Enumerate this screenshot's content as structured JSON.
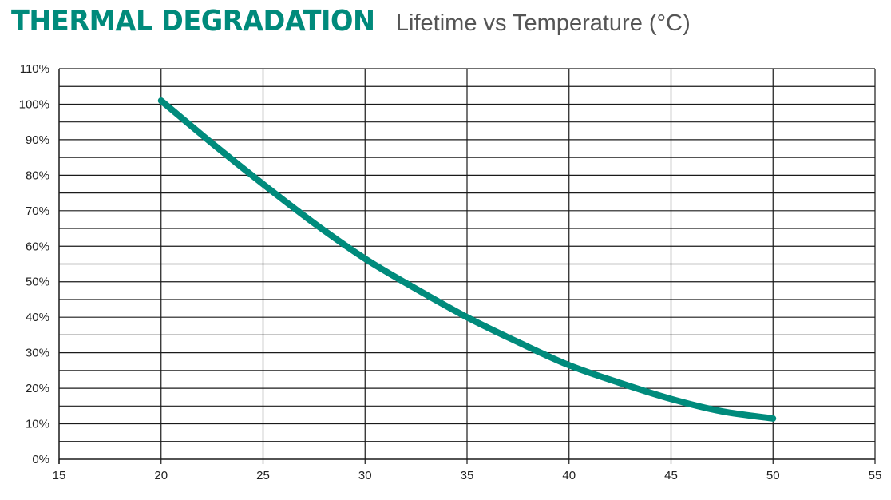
{
  "header": {
    "title": "THERMAL DEGRADATION",
    "subtitle": "Lifetime vs Temperature (°C)"
  },
  "colors": {
    "accent": "#008a7b",
    "curve": "#008b7c",
    "grid": "#1a1a1a"
  },
  "chart_data": {
    "type": "line",
    "title": "THERMAL DEGRADATION",
    "subtitle": "Lifetime vs Temperature (°C)",
    "xlabel": "",
    "ylabel": "",
    "xlim": [
      15,
      55
    ],
    "ylim": [
      0,
      110
    ],
    "x_ticks": [
      15,
      20,
      25,
      30,
      35,
      40,
      45,
      50,
      55
    ],
    "x_tick_labels": [
      "15",
      "20",
      "25",
      "30",
      "35",
      "40",
      "45",
      "50",
      "55"
    ],
    "y_ticks": [
      0,
      10,
      20,
      30,
      40,
      50,
      60,
      70,
      80,
      90,
      100,
      110
    ],
    "y_tick_labels": [
      "0%",
      "10%",
      "20%",
      "30%",
      "40%",
      "50%",
      "60%",
      "70%",
      "80%",
      "90%",
      "100%",
      "110%"
    ],
    "y_minor_gridlines": [
      5,
      15,
      25,
      35,
      45,
      55,
      65,
      75,
      85,
      95,
      105
    ],
    "grid": true,
    "legend": "none",
    "series": [
      {
        "x": [
          20,
          22.5,
          25,
          27.5,
          30,
          32.5,
          35,
          37.5,
          40,
          42.5,
          45,
          47.5,
          50
        ],
        "y": [
          101,
          89,
          77.5,
          66.5,
          56.5,
          48,
          40,
          33,
          26.5,
          21.5,
          17,
          13.5,
          11.5
        ]
      }
    ]
  }
}
